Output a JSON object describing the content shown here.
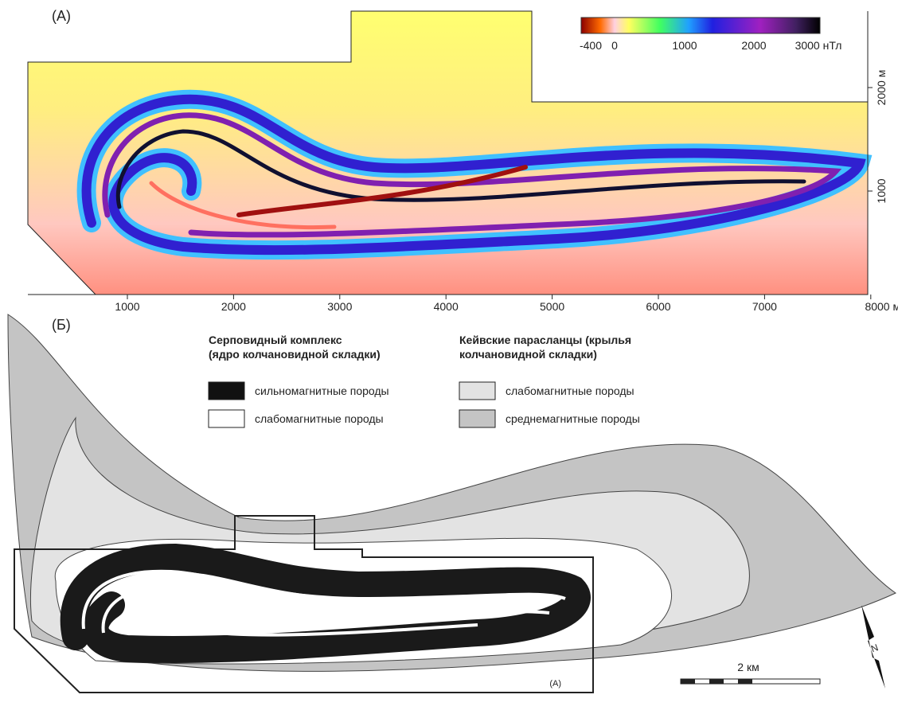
{
  "panel_a": {
    "label": "(A)",
    "colorbar_ticks": [
      "-400",
      "0",
      "1000",
      "2000",
      "3000 нТл"
    ],
    "x_ticks": [
      "1000",
      "2000",
      "3000",
      "4000",
      "5000",
      "6000",
      "7000",
      "8000 м"
    ],
    "y_ticks": [
      "2000 м",
      "1000"
    ]
  },
  "panel_b": {
    "label": "(Б)",
    "legend": [
      {
        "title": [
          "Серповидный комплекс",
          "(ядро колчановидной складки)"
        ],
        "items": [
          "сильномагнитные породы",
          "слабомагнитные породы"
        ]
      },
      {
        "title": [
          "Кейвские парасланцы (крылья",
          "колчановидной складки)"
        ],
        "items": [
          "слабомагнитные породы",
          "среднемагнитные породы"
        ]
      }
    ],
    "inset_label": "(A)",
    "scale_label": "2 км",
    "north_label": "N"
  }
}
